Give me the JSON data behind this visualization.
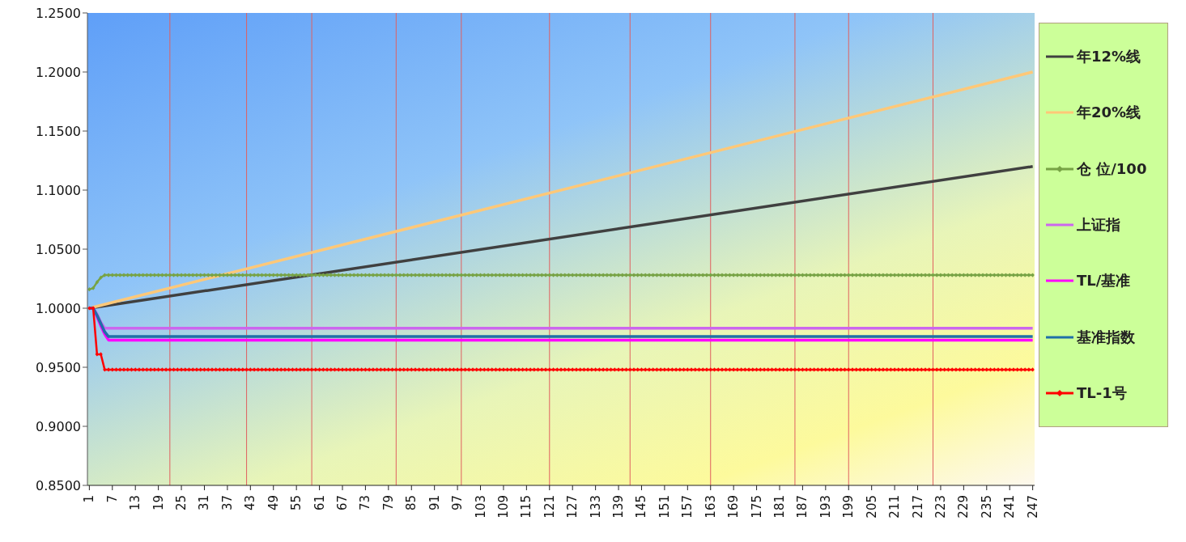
{
  "chart_data": {
    "type": "line",
    "x": [
      1,
      2,
      3,
      4,
      5,
      6,
      7,
      8,
      9,
      10,
      11,
      12,
      13,
      14,
      15,
      16,
      17,
      18,
      19,
      20,
      21,
      22,
      23,
      24,
      25,
      26,
      27,
      28,
      29,
      30,
      31,
      32,
      33,
      34,
      35,
      36,
      37,
      38,
      39,
      40,
      41,
      42,
      43,
      44,
      45,
      46,
      47,
      48,
      49,
      50,
      51,
      52,
      53,
      54,
      55,
      56,
      57,
      58,
      59,
      60,
      61,
      62,
      63,
      64,
      65,
      66,
      67,
      68,
      69,
      70,
      71,
      72,
      73,
      74,
      75,
      76,
      77,
      78,
      79,
      80,
      81,
      82,
      83,
      84,
      85,
      86,
      87,
      88,
      89,
      90,
      91,
      92,
      93,
      94,
      95,
      96,
      97,
      98,
      99,
      100,
      101,
      102,
      103,
      104,
      105,
      106,
      107,
      108,
      109,
      110,
      111,
      112,
      113,
      114,
      115,
      116,
      117,
      118,
      119,
      120,
      121,
      122,
      123,
      124,
      125,
      126,
      127,
      128,
      129,
      130,
      131,
      132,
      133,
      134,
      135,
      136,
      137,
      138,
      139,
      140,
      141,
      142,
      143,
      144,
      145,
      146,
      147,
      148,
      149,
      150,
      151,
      152,
      153,
      154,
      155,
      156,
      157,
      158,
      159,
      160,
      161,
      162,
      163,
      164,
      165,
      166,
      167,
      168,
      169,
      170,
      171,
      172,
      173,
      174,
      175,
      176,
      177,
      178,
      179,
      180,
      181,
      182,
      183,
      184,
      185,
      186,
      187,
      188,
      189,
      190,
      191,
      192,
      193,
      194,
      195,
      196,
      197,
      198,
      199,
      200,
      201,
      202,
      203,
      204,
      205,
      206,
      207,
      208,
      209,
      210,
      211,
      212,
      213,
      214,
      215,
      216,
      217,
      218,
      219,
      220,
      221,
      222,
      223,
      224,
      225,
      226,
      227,
      228,
      229,
      230,
      231,
      232,
      233,
      234,
      235,
      236,
      237,
      238,
      239,
      240,
      241,
      242,
      243,
      244,
      245,
      246,
      247
    ],
    "series": [
      {
        "name": "年12%线",
        "color": "#404040",
        "marker": "none",
        "x": [
          1,
          247
        ],
        "values": [
          1.0,
          1.12
        ]
      },
      {
        "name": "年20%线",
        "color": "#ffc878",
        "marker": "none",
        "x": [
          1,
          247
        ],
        "values": [
          1.0,
          1.2
        ]
      },
      {
        "name": "仓 位/100",
        "color": "#77a345",
        "marker": "diamond",
        "values": [
          1.016,
          1.017,
          1.022,
          1.026,
          1.028,
          1.028,
          1.028,
          1.028,
          1.028,
          1.028,
          1.028,
          1.028,
          1.028,
          1.028,
          1.028,
          1.028,
          1.028,
          1.028,
          1.028,
          1.028,
          1.028,
          1.028,
          1.028,
          1.028,
          1.028,
          1.028,
          1.028,
          1.028,
          1.028,
          1.028,
          1.028,
          1.028,
          1.028,
          1.028,
          1.028,
          1.028,
          1.028,
          1.028,
          1.028,
          1.028,
          1.028,
          1.028,
          1.028,
          1.028,
          1.028,
          1.028,
          1.028,
          1.028,
          1.028,
          1.028,
          1.028,
          1.028,
          1.028,
          1.028,
          1.028,
          1.028,
          1.028,
          1.028,
          1.028,
          1.028,
          1.028,
          1.028,
          1.028,
          1.028,
          1.028,
          1.028,
          1.028,
          1.028,
          1.028,
          1.028,
          1.028,
          1.028,
          1.028,
          1.028,
          1.028,
          1.028,
          1.028,
          1.028,
          1.028,
          1.028,
          1.028,
          1.028,
          1.028,
          1.028,
          1.028,
          1.028,
          1.028,
          1.028,
          1.028,
          1.028,
          1.028,
          1.028,
          1.028,
          1.028,
          1.028,
          1.028,
          1.028,
          1.028,
          1.028,
          1.028,
          1.028,
          1.028,
          1.028,
          1.028,
          1.028,
          1.028,
          1.028,
          1.028,
          1.028,
          1.028,
          1.028,
          1.028,
          1.028,
          1.028,
          1.028,
          1.028,
          1.028,
          1.028,
          1.028,
          1.028,
          1.028,
          1.028,
          1.028,
          1.028,
          1.028,
          1.028,
          1.028,
          1.028,
          1.028,
          1.028,
          1.028,
          1.028,
          1.028,
          1.028,
          1.028,
          1.028,
          1.028,
          1.028,
          1.028,
          1.028,
          1.028,
          1.028,
          1.028,
          1.028,
          1.028,
          1.028,
          1.028,
          1.028,
          1.028,
          1.028,
          1.028,
          1.028,
          1.028,
          1.028,
          1.028,
          1.028,
          1.028,
          1.028,
          1.028,
          1.028,
          1.028,
          1.028,
          1.028,
          1.028,
          1.028,
          1.028,
          1.028,
          1.028,
          1.028,
          1.028,
          1.028,
          1.028,
          1.028,
          1.028,
          1.028,
          1.028,
          1.028,
          1.028,
          1.028,
          1.028,
          1.028,
          1.028,
          1.028,
          1.028,
          1.028,
          1.028,
          1.028,
          1.028,
          1.028,
          1.028,
          1.028,
          1.028,
          1.028,
          1.028,
          1.028,
          1.028,
          1.028,
          1.028,
          1.028,
          1.028,
          1.028,
          1.028,
          1.028,
          1.028,
          1.028,
          1.028,
          1.028,
          1.028,
          1.028,
          1.028,
          1.028,
          1.028,
          1.028,
          1.028,
          1.028,
          1.028,
          1.028,
          1.028,
          1.028,
          1.028,
          1.028,
          1.028,
          1.028,
          1.028,
          1.028,
          1.028,
          1.028,
          1.028,
          1.028,
          1.028,
          1.028,
          1.028,
          1.028,
          1.028,
          1.028,
          1.028,
          1.028,
          1.028,
          1.028,
          1.028,
          1.028,
          1.028,
          1.028,
          1.028,
          1.028,
          1.028,
          1.028
        ]
      },
      {
        "name": "上证指",
        "color": "#cc66ee",
        "marker": "none",
        "x": [
          1,
          2,
          3,
          4,
          5,
          247
        ],
        "values": [
          1.0,
          1.0,
          0.995,
          0.988,
          0.983,
          0.983
        ]
      },
      {
        "name": "TL/基准",
        "color": "#ff00ff",
        "marker": "none",
        "x": [
          1,
          2,
          3,
          4,
          5,
          6,
          247
        ],
        "values": [
          1.0,
          1.0,
          0.993,
          0.985,
          0.978,
          0.973,
          0.973
        ]
      },
      {
        "name": "基准指数",
        "color": "#1f6fa8",
        "marker": "none",
        "x": [
          1,
          2,
          3,
          4,
          5,
          6,
          247
        ],
        "values": [
          1.0,
          1.0,
          0.994,
          0.987,
          0.98,
          0.976,
          0.976
        ]
      },
      {
        "name": "TL-1号",
        "color": "#ff0000",
        "marker": "diamond",
        "values": [
          1.0,
          1.0,
          0.961,
          0.961,
          0.948,
          0.948,
          0.948,
          0.948,
          0.948,
          0.948,
          0.948,
          0.948,
          0.948,
          0.948,
          0.948,
          0.948,
          0.948,
          0.948,
          0.948,
          0.948,
          0.948,
          0.948,
          0.948,
          0.948,
          0.948,
          0.948,
          0.948,
          0.948,
          0.948,
          0.948,
          0.948,
          0.948,
          0.948,
          0.948,
          0.948,
          0.948,
          0.948,
          0.948,
          0.948,
          0.948,
          0.948,
          0.948,
          0.948,
          0.948,
          0.948,
          0.948,
          0.948,
          0.948,
          0.948,
          0.948,
          0.948,
          0.948,
          0.948,
          0.948,
          0.948,
          0.948,
          0.948,
          0.948,
          0.948,
          0.948,
          0.948,
          0.948,
          0.948,
          0.948,
          0.948,
          0.948,
          0.948,
          0.948,
          0.948,
          0.948,
          0.948,
          0.948,
          0.948,
          0.948,
          0.948,
          0.948,
          0.948,
          0.948,
          0.948,
          0.948,
          0.948,
          0.948,
          0.948,
          0.948,
          0.948,
          0.948,
          0.948,
          0.948,
          0.948,
          0.948,
          0.948,
          0.948,
          0.948,
          0.948,
          0.948,
          0.948,
          0.948,
          0.948,
          0.948,
          0.948,
          0.948,
          0.948,
          0.948,
          0.948,
          0.948,
          0.948,
          0.948,
          0.948,
          0.948,
          0.948,
          0.948,
          0.948,
          0.948,
          0.948,
          0.948,
          0.948,
          0.948,
          0.948,
          0.948,
          0.948,
          0.948,
          0.948,
          0.948,
          0.948,
          0.948,
          0.948,
          0.948,
          0.948,
          0.948,
          0.948,
          0.948,
          0.948,
          0.948,
          0.948,
          0.948,
          0.948,
          0.948,
          0.948,
          0.948,
          0.948,
          0.948,
          0.948,
          0.948,
          0.948,
          0.948,
          0.948,
          0.948,
          0.948,
          0.948,
          0.948,
          0.948,
          0.948,
          0.948,
          0.948,
          0.948,
          0.948,
          0.948,
          0.948,
          0.948,
          0.948,
          0.948,
          0.948,
          0.948,
          0.948,
          0.948,
          0.948,
          0.948,
          0.948,
          0.948,
          0.948,
          0.948,
          0.948,
          0.948,
          0.948,
          0.948,
          0.948,
          0.948,
          0.948,
          0.948,
          0.948,
          0.948,
          0.948,
          0.948,
          0.948,
          0.948,
          0.948,
          0.948,
          0.948,
          0.948,
          0.948,
          0.948,
          0.948,
          0.948,
          0.948,
          0.948,
          0.948,
          0.948,
          0.948,
          0.948,
          0.948,
          0.948,
          0.948,
          0.948,
          0.948,
          0.948,
          0.948,
          0.948,
          0.948,
          0.948,
          0.948,
          0.948,
          0.948,
          0.948,
          0.948,
          0.948,
          0.948,
          0.948,
          0.948,
          0.948,
          0.948,
          0.948,
          0.948,
          0.948,
          0.948,
          0.948,
          0.948,
          0.948,
          0.948,
          0.948,
          0.948,
          0.948,
          0.948,
          0.948,
          0.948,
          0.948,
          0.948,
          0.948,
          0.948,
          0.948,
          0.948,
          0.948,
          0.948,
          0.948,
          0.948,
          0.948,
          0.948,
          0.948
        ]
      }
    ],
    "xlim": [
      0.5,
      247.5
    ],
    "xticks": [
      1,
      7,
      13,
      19,
      25,
      31,
      37,
      43,
      49,
      55,
      61,
      67,
      73,
      79,
      85,
      91,
      97,
      103,
      109,
      115,
      121,
      127,
      133,
      139,
      145,
      151,
      157,
      163,
      169,
      175,
      181,
      187,
      193,
      199,
      205,
      211,
      217,
      223,
      229,
      235,
      241,
      247
    ],
    "ylim": [
      0.85,
      1.25
    ],
    "yticks": [
      {
        "value": 0.85,
        "label": "0.8500"
      },
      {
        "value": 0.9,
        "label": "0.9000"
      },
      {
        "value": 0.95,
        "label": "0.9500"
      },
      {
        "value": 1.0,
        "label": "1.0000"
      },
      {
        "value": 1.05,
        "label": "1.0500"
      },
      {
        "value": 1.1,
        "label": "1.1000"
      },
      {
        "value": 1.15,
        "label": "1.1500"
      },
      {
        "value": 1.2,
        "label": "1.2000"
      },
      {
        "value": 1.25,
        "label": "1.2500"
      }
    ],
    "ref_lines": [
      {
        "axis": "x",
        "value": 22,
        "color": "#e06060"
      },
      {
        "axis": "x",
        "value": 42,
        "color": "#e06060"
      },
      {
        "axis": "x",
        "value": 59,
        "color": "#e06060"
      },
      {
        "axis": "x",
        "value": 81,
        "color": "#e06060"
      },
      {
        "axis": "x",
        "value": 98,
        "color": "#e06060"
      },
      {
        "axis": "x",
        "value": 121,
        "color": "#e06060"
      },
      {
        "axis": "x",
        "value": 142,
        "color": "#e06060"
      },
      {
        "axis": "x",
        "value": 163,
        "color": "#e06060"
      },
      {
        "axis": "x",
        "value": 185,
        "color": "#e06060"
      },
      {
        "axis": "x",
        "value": 199,
        "color": "#e06060"
      },
      {
        "axis": "x",
        "value": 221,
        "color": "#e06060"
      }
    ],
    "grid": false,
    "legend": "right"
  }
}
